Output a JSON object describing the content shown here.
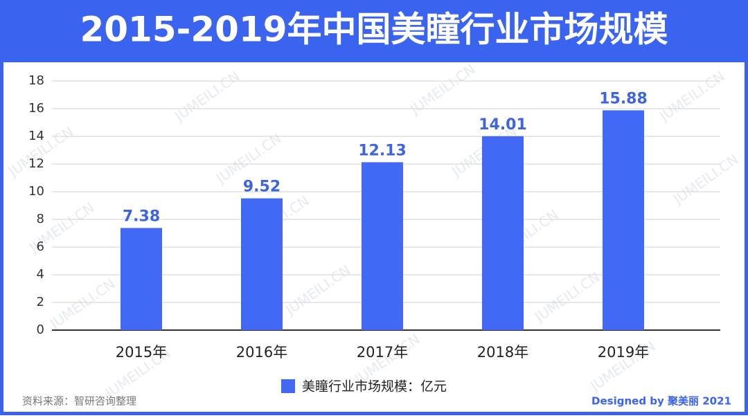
{
  "chart_data": {
    "type": "bar",
    "title": "2015-2019年中国美瞳行业市场规模",
    "categories": [
      "2015年",
      "2016年",
      "2017年",
      "2018年",
      "2019年"
    ],
    "series": [
      {
        "name": "美瞳行业市场规模：亿元",
        "color": "#4169f5",
        "values": [
          7.38,
          9.52,
          12.13,
          14.01,
          15.88
        ]
      }
    ],
    "ylim": [
      0,
      18
    ],
    "yticks": [
      0,
      2,
      4,
      6,
      8,
      10,
      12,
      14,
      16,
      18
    ],
    "grid": true,
    "legend": "bottom",
    "source": "资料来源：智研咨询整理",
    "credit": "Designed by 聚美丽 2021",
    "watermark": "JUMEILI.CN"
  }
}
